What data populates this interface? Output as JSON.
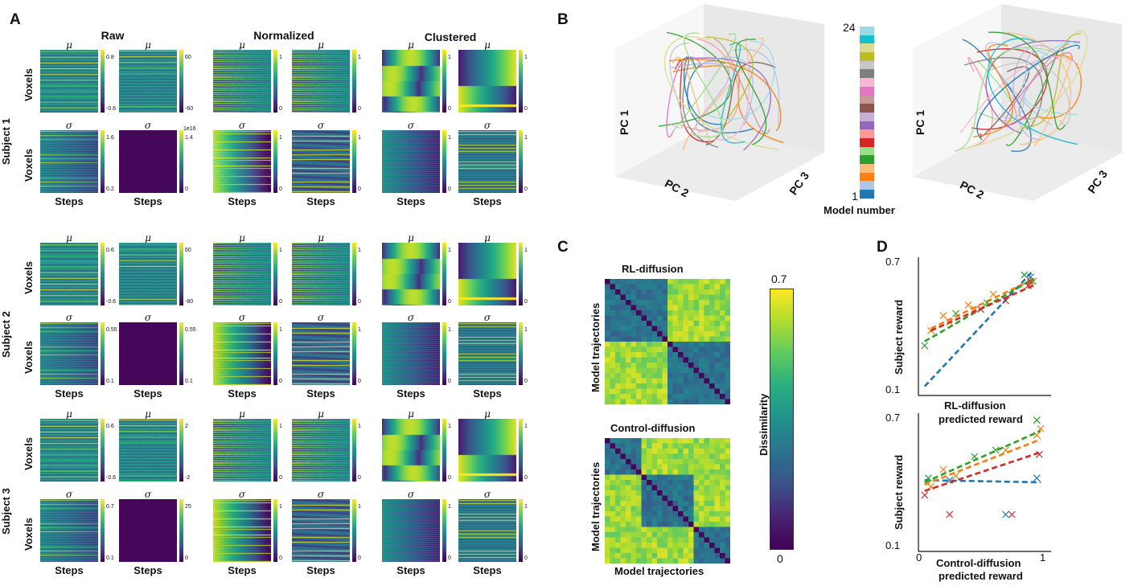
{
  "panels": {
    "a": "A",
    "b": "B",
    "c": "C",
    "d": "D"
  },
  "panel_a": {
    "col_titles": [
      "Raw",
      "Normalized",
      "Clustered"
    ],
    "subjects": [
      "Subject 1",
      "Subject 2",
      "Subject 3"
    ],
    "mu_label": "μ",
    "sigma_label": "σ",
    "voxels_label": "Voxels",
    "steps_label": "Steps",
    "ticks": [
      [
        "0.8",
        "-0.6",
        "60",
        "-60",
        "1",
        "0",
        "1",
        "0",
        "1",
        "0",
        "1",
        "0",
        "1.6",
        "0.2",
        "1.4",
        "0",
        "1",
        "0",
        "1",
        "0",
        "1",
        "0",
        "1",
        "0",
        "1e16"
      ],
      [
        "0.6",
        "-0.6",
        "60",
        "-80",
        "1",
        "0",
        "1",
        "0",
        "1",
        "0",
        "1",
        "0",
        "0.55",
        "0.1",
        "0.55",
        "0.1",
        "1",
        "0",
        "1",
        "0",
        "1",
        "0",
        "1",
        "0"
      ],
      [
        "0.6",
        "-0.6",
        "2",
        "-2",
        "1",
        "0",
        "1",
        "0",
        "1",
        "0",
        "1",
        "0",
        "0.7",
        "0.1",
        "25",
        "0",
        "1",
        "0",
        "1",
        "0",
        "1",
        "0",
        "1",
        "0"
      ]
    ]
  },
  "panel_b": {
    "axes": {
      "pc1": "PC 1",
      "pc2": "PC 2",
      "pc3": "PC 3"
    },
    "colorbar_top": "24",
    "colorbar_bottom": "1",
    "colorbar_label": "Model number",
    "colors": [
      "#1f77b4",
      "#aec7e8",
      "#ff7f0e",
      "#ffbb78",
      "#2ca02c",
      "#98df8a",
      "#d62728",
      "#ff9896",
      "#9467bd",
      "#c5b0d5",
      "#8c564b",
      "#c49c94",
      "#e377c2",
      "#f7b6d2",
      "#7f7f7f",
      "#c7c7c7",
      "#bcbd22",
      "#dbdb8d",
      "#17becf",
      "#9edae5"
    ]
  },
  "panel_c": {
    "title_top": "RL-diffusion",
    "title_bottom": "Control-diffusion",
    "ylabel": "Model trajectories",
    "xlabel": "Model trajectories",
    "colorbar_max": "0.7",
    "colorbar_min": "0",
    "colorbar_label": "Dissimilarity"
  },
  "panel_d": {
    "ylabel": "Subject reward",
    "top_xlabel_1": "RL-diffusion",
    "top_xlabel_2": "predicted reward",
    "bottom_xlabel_1": "Control-diffusion",
    "bottom_xlabel_2": "predicted reward",
    "ytick_top": "0.7",
    "ytick_bottom": "0.1",
    "xtick_left": "0",
    "xtick_right": "1"
  },
  "chart_data": [
    {
      "type": "scatter",
      "title": "",
      "xlabel": "RL-diffusion predicted reward",
      "ylabel": "Subject reward",
      "xlim": [
        0,
        1
      ],
      "ylim": [
        0.1,
        0.7
      ],
      "series": [
        {
          "color": "#1f77b4",
          "x": [
            0.85,
            0.9
          ],
          "y": [
            0.64,
            0.63
          ],
          "fit": [
            [
              0.05,
              0.12
            ],
            [
              0.92,
              0.66
            ]
          ]
        },
        {
          "color": "#ff7f0e",
          "x": [
            0.1,
            0.2,
            0.25,
            0.4,
            0.45,
            0.6,
            0.9
          ],
          "y": [
            0.38,
            0.45,
            0.42,
            0.5,
            0.48,
            0.55,
            0.6
          ],
          "fit": [
            [
              0.1,
              0.39
            ],
            [
              0.92,
              0.62
            ]
          ]
        },
        {
          "color": "#2ca02c",
          "x": [
            0.05,
            0.3,
            0.55,
            0.85,
            0.92
          ],
          "y": [
            0.31,
            0.46,
            0.51,
            0.64,
            0.61
          ],
          "fit": [
            [
              0.05,
              0.33
            ],
            [
              0.92,
              0.62
            ]
          ]
        },
        {
          "color": "#d62728",
          "x": [
            0.5,
            0.7,
            0.88,
            0.9
          ],
          "y": [
            0.48,
            0.52,
            0.59,
            0.61
          ],
          "fit": [
            [
              0.1,
              0.38
            ],
            [
              0.92,
              0.59
            ]
          ]
        }
      ]
    },
    {
      "type": "scatter",
      "title": "",
      "xlabel": "Control-diffusion predicted reward",
      "ylabel": "Subject reward",
      "xlim": [
        0,
        1
      ],
      "ylim": [
        0.1,
        0.7
      ],
      "series": [
        {
          "color": "#1f77b4",
          "x": [
            0.25,
            0.7,
            0.95
          ],
          "y": [
            0.41,
            0.25,
            0.42
          ],
          "fit": [
            [
              0.05,
              0.41
            ],
            [
              0.98,
              0.4
            ]
          ]
        },
        {
          "color": "#ff7f0e",
          "x": [
            0.1,
            0.2,
            0.3,
            0.7,
            0.95,
            0.98
          ],
          "y": [
            0.38,
            0.46,
            0.43,
            0.55,
            0.62,
            0.65
          ],
          "fit": [
            [
              0.05,
              0.39
            ],
            [
              0.98,
              0.6
            ]
          ]
        },
        {
          "color": "#2ca02c",
          "x": [
            0.08,
            0.45,
            0.62,
            0.95
          ],
          "y": [
            0.42,
            0.52,
            0.55,
            0.69
          ],
          "fit": [
            [
              0.05,
              0.4
            ],
            [
              0.98,
              0.64
            ]
          ]
        },
        {
          "color": "#d62728",
          "x": [
            0.05,
            0.25,
            0.75,
            0.97
          ],
          "y": [
            0.34,
            0.25,
            0.25,
            0.53
          ],
          "fit": [
            [
              0.05,
              0.36
            ],
            [
              0.98,
              0.54
            ]
          ]
        }
      ]
    }
  ]
}
